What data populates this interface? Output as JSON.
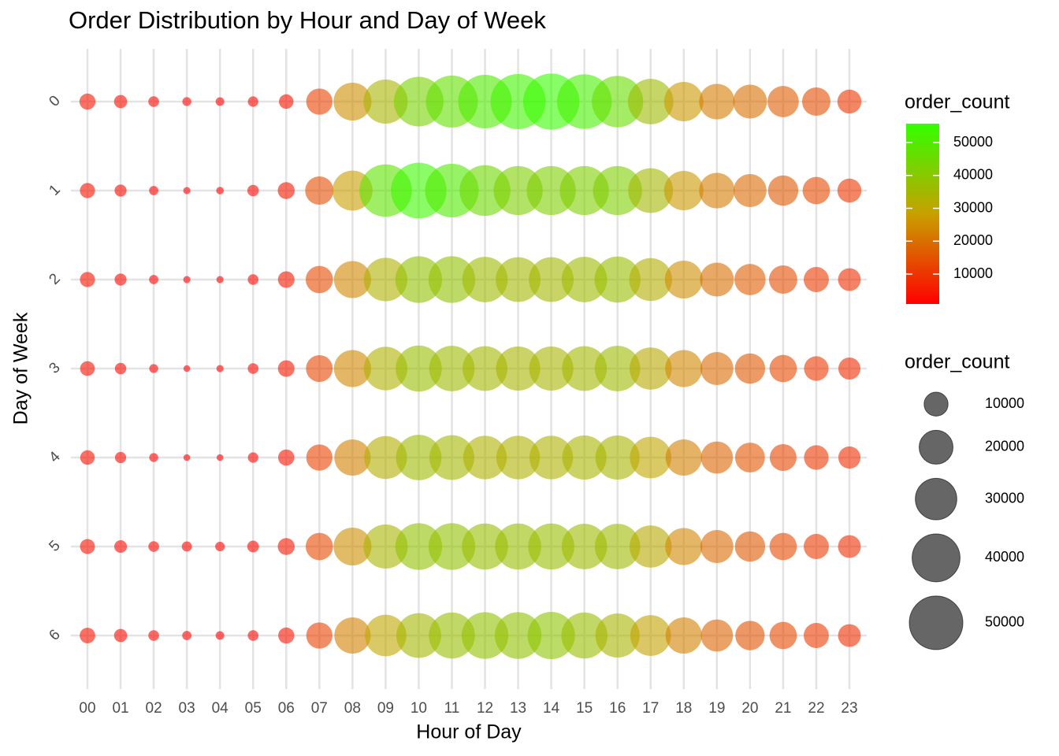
{
  "chart_data": {
    "type": "bubble",
    "title": "Order Distribution by Hour and Day of Week",
    "x_label": "Hour of Day",
    "y_label": "Day of Week",
    "categories": [
      "00",
      "01",
      "02",
      "03",
      "04",
      "05",
      "06",
      "07",
      "08",
      "09",
      "10",
      "11",
      "12",
      "13",
      "14",
      "15",
      "16",
      "17",
      "18",
      "19",
      "20",
      "21",
      "22",
      "23"
    ],
    "series": [
      {
        "name": "0",
        "values": [
          4500,
          3000,
          2000,
          1400,
          1300,
          1900,
          3700,
          12000,
          25000,
          34000,
          43000,
          47000,
          50000,
          53000,
          55000,
          52000,
          46000,
          36000,
          27000,
          22000,
          20000,
          17000,
          14000,
          10000
        ]
      },
      {
        "name": "1",
        "values": [
          4000,
          2500,
          1500,
          900,
          1000,
          2300,
          5000,
          14000,
          28000,
          48000,
          54000,
          50000,
          45000,
          42000,
          42000,
          42000,
          42000,
          35000,
          27000,
          22000,
          19000,
          16000,
          13000,
          10000
        ]
      },
      {
        "name": "2",
        "values": [
          4000,
          2500,
          1500,
          900,
          900,
          2000,
          4800,
          13000,
          24000,
          33000,
          38000,
          38000,
          36000,
          35000,
          35000,
          36000,
          37000,
          32000,
          25000,
          20000,
          17000,
          14000,
          11000,
          9000
        ]
      },
      {
        "name": "3",
        "values": [
          3800,
          2300,
          1400,
          800,
          900,
          2000,
          4800,
          12500,
          24000,
          33000,
          37000,
          36000,
          35000,
          34000,
          34000,
          35000,
          36000,
          31000,
          24000,
          19000,
          16000,
          13000,
          10500,
          8500
        ]
      },
      {
        "name": "4",
        "values": [
          3700,
          2200,
          1400,
          800,
          800,
          1900,
          4600,
          12000,
          23000,
          32000,
          36000,
          35000,
          33000,
          33000,
          33000,
          34000,
          34000,
          30000,
          23000,
          18000,
          15500,
          12500,
          10500,
          8600
        ]
      },
      {
        "name": "5",
        "values": [
          3900,
          2800,
          2000,
          1800,
          1600,
          2400,
          5000,
          13000,
          25000,
          34000,
          38000,
          38000,
          37000,
          37000,
          37000,
          36000,
          36000,
          31000,
          24000,
          19000,
          16000,
          13000,
          11000,
          9000
        ]
      },
      {
        "name": "6",
        "values": [
          4200,
          3000,
          2000,
          1500,
          1300,
          2000,
          4500,
          12000,
          23000,
          30000,
          35000,
          37000,
          38000,
          38000,
          39000,
          37000,
          34000,
          29000,
          23000,
          18000,
          15000,
          13000,
          11000,
          9000
        ]
      }
    ],
    "color_legend": {
      "title": "order_count",
      "lim": [
        900,
        55750
      ],
      "colors": [
        "#ff0000",
        "#c8a000",
        "#33ff00"
      ],
      "ticks": [
        10000,
        20000,
        30000,
        40000,
        50000
      ]
    },
    "size_legend": {
      "title": "order_count",
      "ticks": [
        10000,
        20000,
        30000,
        40000,
        50000
      ]
    },
    "grid": true,
    "opacity": 0.6
  }
}
